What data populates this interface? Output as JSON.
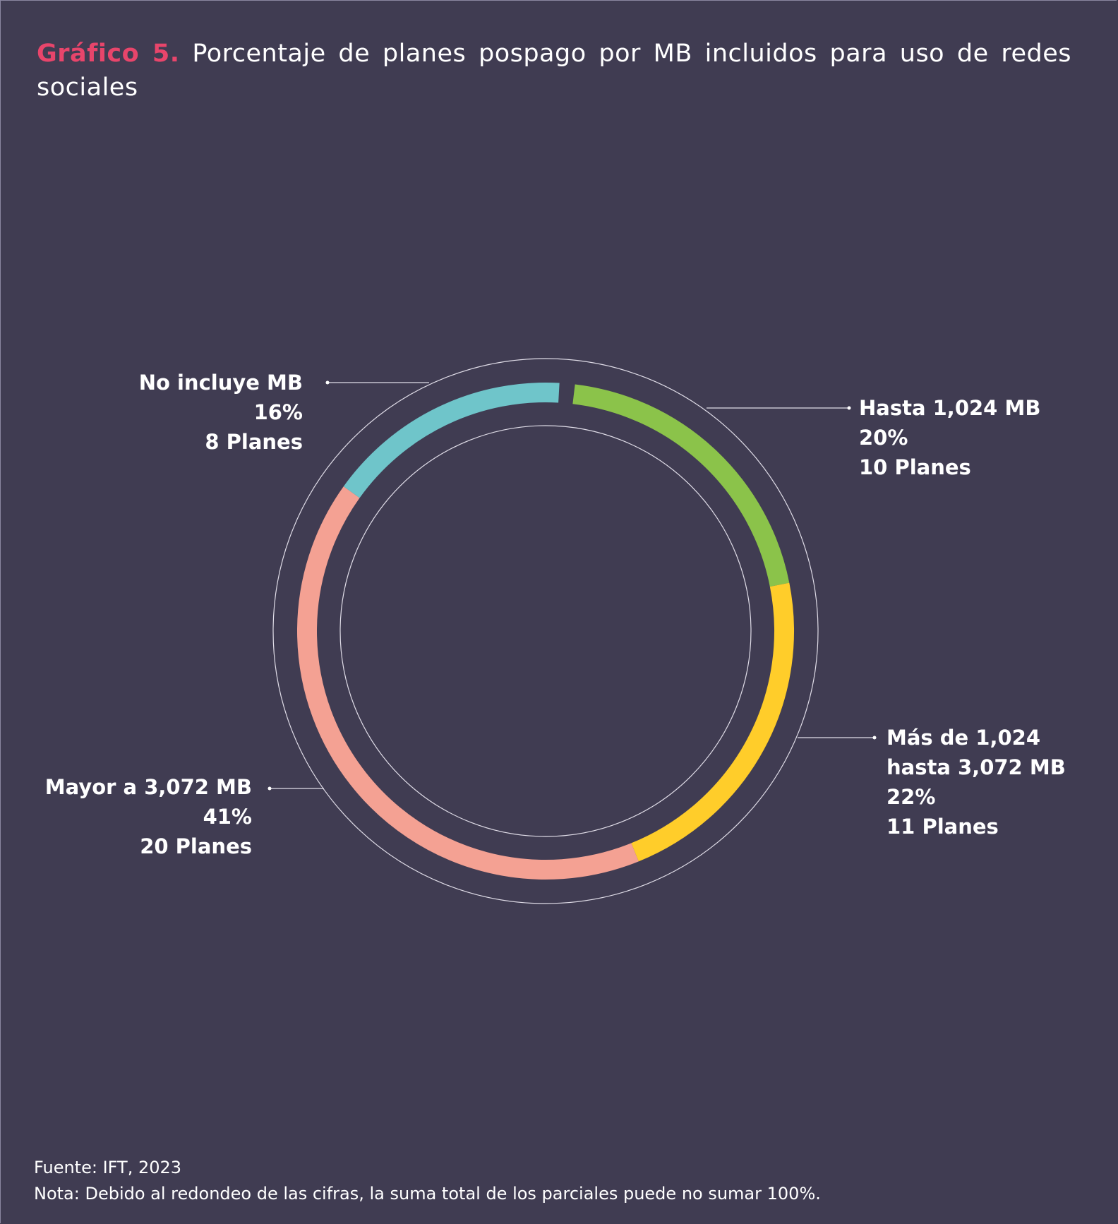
{
  "chart_data": {
    "type": "donut",
    "title_prefix": "Gráfico 5.",
    "title": "Porcentaje de planes pospago por MB incluidos para uso de redes sociales",
    "categories": [
      "Hasta 1,024 MB",
      "Más de 1,024\nhasta 3,072 MB",
      "Mayor a 3,072 MB",
      "No incluye MB"
    ],
    "values": [
      20,
      22,
      41,
      16
    ],
    "value_labels": [
      "20%",
      "22%",
      "41%",
      "16%"
    ],
    "plans": [
      10,
      11,
      20,
      8
    ],
    "plan_labels": [
      "10 Planes",
      "11 Planes",
      "20 Planes",
      "8 Planes"
    ],
    "colors": [
      "#8bc34a",
      "#ffcd2a",
      "#f4a193",
      "#6fc5ca"
    ],
    "source": "Fuente: IFT, 2023",
    "note": "Nota: Debido al redondeo de las cifras, la suma total de los parciales puede no sumar 100%."
  }
}
